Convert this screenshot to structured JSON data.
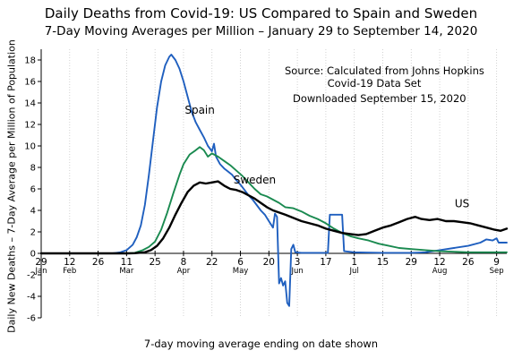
{
  "chart_data": {
    "type": "line",
    "title": "Daily Deaths from Covid-19:  US Compared to Spain and Sweden",
    "subtitle": "7-Day Moving Averages per Million – January 29 to September 14, 2020",
    "ylabel": "Daily New Deaths – 7-Day Average per Million of Population",
    "xlabel": "7-day moving average ending on date shown",
    "source_lines": [
      "Source:  Calculated from Johns Hopkins",
      "Covid-19 Data Set"
    ],
    "download_note": "Downloaded September 15, 2020",
    "ylim": [
      -6,
      19
    ],
    "xlim": [
      "2020-01-29",
      "2020-09-14"
    ],
    "yticks": [
      -6,
      -4,
      -2,
      0,
      2,
      4,
      6,
      8,
      10,
      12,
      14,
      16,
      18
    ],
    "ytick_labels": [
      "-6",
      "-4",
      "-2",
      "0",
      "2",
      "4",
      "6",
      "8",
      "10",
      "12",
      "14",
      "16",
      "18"
    ],
    "xticks": [
      {
        "date": "2020-01-29",
        "day": "29",
        "month": "Jan"
      },
      {
        "date": "2020-02-12",
        "day": "12",
        "month": "Feb"
      },
      {
        "date": "2020-02-26",
        "day": "26",
        "month": ""
      },
      {
        "date": "2020-03-11",
        "day": "11",
        "month": "Mar"
      },
      {
        "date": "2020-03-25",
        "day": "25",
        "month": ""
      },
      {
        "date": "2020-04-08",
        "day": "8",
        "month": "Apr"
      },
      {
        "date": "2020-04-22",
        "day": "22",
        "month": ""
      },
      {
        "date": "2020-05-06",
        "day": "6",
        "month": "May"
      },
      {
        "date": "2020-05-20",
        "day": "20",
        "month": ""
      },
      {
        "date": "2020-06-03",
        "day": "3",
        "month": "Jun"
      },
      {
        "date": "2020-06-17",
        "day": "17",
        "month": ""
      },
      {
        "date": "2020-07-01",
        "day": "1",
        "month": "Jul"
      },
      {
        "date": "2020-07-15",
        "day": "15",
        "month": ""
      },
      {
        "date": "2020-07-29",
        "day": "29",
        "month": ""
      },
      {
        "date": "2020-08-12",
        "day": "12",
        "month": "Aug"
      },
      {
        "date": "2020-08-26",
        "day": "26",
        "month": ""
      },
      {
        "date": "2020-09-09",
        "day": "9",
        "month": "Sep"
      }
    ],
    "grid": {
      "vertical": "dotted",
      "horizontal": false
    },
    "series": [
      {
        "name": "Spain",
        "color": "#1f5fbf",
        "points": [
          [
            "2020-01-29",
            0
          ],
          [
            "2020-03-04",
            0
          ],
          [
            "2020-03-08",
            0.1
          ],
          [
            "2020-03-11",
            0.3
          ],
          [
            "2020-03-14",
            0.8
          ],
          [
            "2020-03-16",
            1.5
          ],
          [
            "2020-03-18",
            2.6
          ],
          [
            "2020-03-20",
            4.5
          ],
          [
            "2020-03-22",
            7.3
          ],
          [
            "2020-03-24",
            10.5
          ],
          [
            "2020-03-26",
            13.6
          ],
          [
            "2020-03-28",
            16.0
          ],
          [
            "2020-03-30",
            17.5
          ],
          [
            "2020-04-01",
            18.3
          ],
          [
            "2020-04-02",
            18.5
          ],
          [
            "2020-04-04",
            18.0
          ],
          [
            "2020-04-06",
            17.2
          ],
          [
            "2020-04-08",
            16.0
          ],
          [
            "2020-04-10",
            14.6
          ],
          [
            "2020-04-12",
            13.2
          ],
          [
            "2020-04-14",
            12.2
          ],
          [
            "2020-04-16",
            11.5
          ],
          [
            "2020-04-18",
            10.8
          ],
          [
            "2020-04-20",
            10.0
          ],
          [
            "2020-04-22",
            9.5
          ],
          [
            "2020-04-23",
            10.2
          ],
          [
            "2020-04-24",
            9.0
          ],
          [
            "2020-04-26",
            8.3
          ],
          [
            "2020-04-28",
            7.9
          ],
          [
            "2020-04-30",
            7.6
          ],
          [
            "2020-05-02",
            7.3
          ],
          [
            "2020-05-04",
            6.8
          ],
          [
            "2020-05-06",
            6.4
          ],
          [
            "2020-05-08",
            5.9
          ],
          [
            "2020-05-10",
            5.4
          ],
          [
            "2020-05-12",
            5.0
          ],
          [
            "2020-05-14",
            4.5
          ],
          [
            "2020-05-16",
            4.0
          ],
          [
            "2020-05-18",
            3.6
          ],
          [
            "2020-05-20",
            3.0
          ],
          [
            "2020-05-22",
            2.4
          ],
          [
            "2020-05-23",
            3.7
          ],
          [
            "2020-05-24",
            3.4
          ],
          [
            "2020-05-25",
            -2.8
          ],
          [
            "2020-05-26",
            -2.3
          ],
          [
            "2020-05-27",
            -3.0
          ],
          [
            "2020-05-28",
            -2.6
          ],
          [
            "2020-05-29",
            -4.6
          ],
          [
            "2020-05-30",
            -4.9
          ],
          [
            "2020-05-31",
            0.4
          ],
          [
            "2020-06-01",
            0.8
          ],
          [
            "2020-06-02",
            0.1
          ],
          [
            "2020-06-05",
            0.05
          ],
          [
            "2020-06-10",
            0.05
          ],
          [
            "2020-06-18",
            0.05
          ],
          [
            "2020-06-19",
            3.6
          ],
          [
            "2020-06-25",
            3.6
          ],
          [
            "2020-06-26",
            0.2
          ],
          [
            "2020-07-01",
            0.1
          ],
          [
            "2020-07-15",
            0.05
          ],
          [
            "2020-07-29",
            0.05
          ],
          [
            "2020-08-05",
            0.1
          ],
          [
            "2020-08-12",
            0.3
          ],
          [
            "2020-08-19",
            0.5
          ],
          [
            "2020-08-26",
            0.7
          ],
          [
            "2020-09-01",
            1.0
          ],
          [
            "2020-09-04",
            1.3
          ],
          [
            "2020-09-07",
            1.2
          ],
          [
            "2020-09-09",
            1.4
          ],
          [
            "2020-09-10",
            1.0
          ],
          [
            "2020-09-14",
            1.0
          ]
        ]
      },
      {
        "name": "Sweden",
        "color": "#1a8a50",
        "points": [
          [
            "2020-01-29",
            0
          ],
          [
            "2020-03-11",
            0
          ],
          [
            "2020-03-15",
            0.05
          ],
          [
            "2020-03-19",
            0.3
          ],
          [
            "2020-03-22",
            0.6
          ],
          [
            "2020-03-25",
            1.1
          ],
          [
            "2020-03-28",
            2.2
          ],
          [
            "2020-03-31",
            3.8
          ],
          [
            "2020-04-03",
            5.6
          ],
          [
            "2020-04-06",
            7.3
          ],
          [
            "2020-04-08",
            8.3
          ],
          [
            "2020-04-11",
            9.2
          ],
          [
            "2020-04-14",
            9.6
          ],
          [
            "2020-04-16",
            9.9
          ],
          [
            "2020-04-18",
            9.6
          ],
          [
            "2020-04-20",
            9.0
          ],
          [
            "2020-04-22",
            9.3
          ],
          [
            "2020-04-25",
            9.0
          ],
          [
            "2020-04-28",
            8.6
          ],
          [
            "2020-05-01",
            8.2
          ],
          [
            "2020-05-04",
            7.7
          ],
          [
            "2020-05-07",
            7.2
          ],
          [
            "2020-05-10",
            6.6
          ],
          [
            "2020-05-13",
            6.0
          ],
          [
            "2020-05-16",
            5.5
          ],
          [
            "2020-05-19",
            5.3
          ],
          [
            "2020-05-22",
            5.0
          ],
          [
            "2020-05-25",
            4.7
          ],
          [
            "2020-05-28",
            4.3
          ],
          [
            "2020-06-01",
            4.2
          ],
          [
            "2020-06-05",
            3.9
          ],
          [
            "2020-06-09",
            3.5
          ],
          [
            "2020-06-13",
            3.2
          ],
          [
            "2020-06-17",
            2.8
          ],
          [
            "2020-06-21",
            2.3
          ],
          [
            "2020-06-25",
            1.9
          ],
          [
            "2020-06-29",
            1.6
          ],
          [
            "2020-07-03",
            1.4
          ],
          [
            "2020-07-08",
            1.2
          ],
          [
            "2020-07-13",
            0.9
          ],
          [
            "2020-07-18",
            0.7
          ],
          [
            "2020-07-23",
            0.5
          ],
          [
            "2020-07-29",
            0.4
          ],
          [
            "2020-08-05",
            0.3
          ],
          [
            "2020-08-12",
            0.2
          ],
          [
            "2020-08-19",
            0.15
          ],
          [
            "2020-08-26",
            0.1
          ],
          [
            "2020-09-02",
            0.1
          ],
          [
            "2020-09-09",
            0.1
          ],
          [
            "2020-09-14",
            0.1
          ]
        ]
      },
      {
        "name": "US",
        "color": "#000000",
        "points": [
          [
            "2020-01-29",
            0
          ],
          [
            "2020-03-11",
            0
          ],
          [
            "2020-03-15",
            0.02
          ],
          [
            "2020-03-20",
            0.1
          ],
          [
            "2020-03-23",
            0.3
          ],
          [
            "2020-03-26",
            0.7
          ],
          [
            "2020-03-29",
            1.4
          ],
          [
            "2020-04-01",
            2.4
          ],
          [
            "2020-04-04",
            3.6
          ],
          [
            "2020-04-07",
            4.7
          ],
          [
            "2020-04-10",
            5.7
          ],
          [
            "2020-04-13",
            6.3
          ],
          [
            "2020-04-16",
            6.6
          ],
          [
            "2020-04-19",
            6.5
          ],
          [
            "2020-04-22",
            6.6
          ],
          [
            "2020-04-25",
            6.7
          ],
          [
            "2020-04-28",
            6.3
          ],
          [
            "2020-05-01",
            6.0
          ],
          [
            "2020-05-04",
            5.9
          ],
          [
            "2020-05-07",
            5.7
          ],
          [
            "2020-05-10",
            5.4
          ],
          [
            "2020-05-13",
            5.1
          ],
          [
            "2020-05-16",
            4.7
          ],
          [
            "2020-05-19",
            4.3
          ],
          [
            "2020-05-22",
            4.0
          ],
          [
            "2020-05-25",
            3.8
          ],
          [
            "2020-05-28",
            3.6
          ],
          [
            "2020-06-01",
            3.3
          ],
          [
            "2020-06-05",
            3.0
          ],
          [
            "2020-06-09",
            2.8
          ],
          [
            "2020-06-13",
            2.6
          ],
          [
            "2020-06-17",
            2.3
          ],
          [
            "2020-06-21",
            2.1
          ],
          [
            "2020-06-25",
            1.9
          ],
          [
            "2020-06-29",
            1.8
          ],
          [
            "2020-07-03",
            1.7
          ],
          [
            "2020-07-07",
            1.8
          ],
          [
            "2020-07-11",
            2.1
          ],
          [
            "2020-07-15",
            2.4
          ],
          [
            "2020-07-19",
            2.6
          ],
          [
            "2020-07-23",
            2.9
          ],
          [
            "2020-07-27",
            3.2
          ],
          [
            "2020-07-31",
            3.4
          ],
          [
            "2020-08-03",
            3.2
          ],
          [
            "2020-08-07",
            3.1
          ],
          [
            "2020-08-11",
            3.2
          ],
          [
            "2020-08-15",
            3.0
          ],
          [
            "2020-08-19",
            3.0
          ],
          [
            "2020-08-23",
            2.9
          ],
          [
            "2020-08-27",
            2.8
          ],
          [
            "2020-08-31",
            2.6
          ],
          [
            "2020-09-04",
            2.4
          ],
          [
            "2020-09-08",
            2.2
          ],
          [
            "2020-09-11",
            2.1
          ],
          [
            "2020-09-14",
            2.3
          ]
        ]
      }
    ],
    "series_labels": [
      {
        "text": "Spain",
        "series": "Spain",
        "at": [
          "2020-04-16",
          13.0
        ]
      },
      {
        "text": "Sweden",
        "series": "Sweden",
        "at": [
          "2020-05-13",
          6.5
        ]
      },
      {
        "text": "US",
        "series": "US",
        "at": [
          "2020-08-23",
          4.3
        ]
      }
    ]
  }
}
